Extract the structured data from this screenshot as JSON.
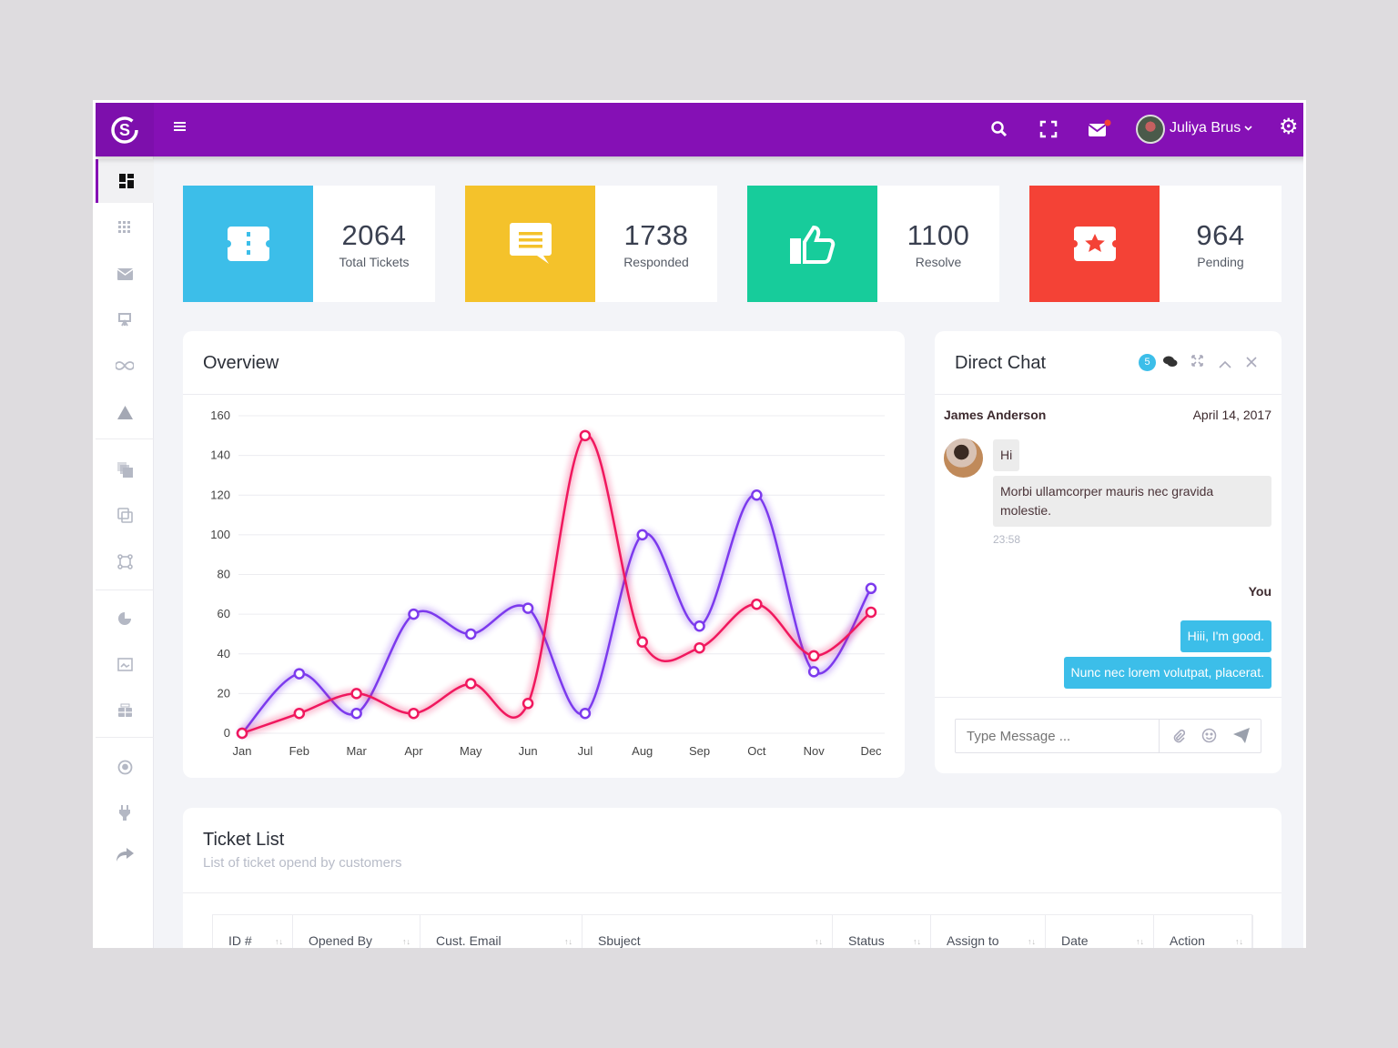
{
  "header": {
    "user_name": "Juliya Brus",
    "icons": [
      "menu-icon",
      "search-icon",
      "fullscreen-icon",
      "mail-icon",
      "avatar",
      "settings-icon"
    ],
    "brand_color": "#8510b5"
  },
  "sidebar": {
    "items": [
      "dashboard-icon",
      "apps-icon",
      "mail-icon",
      "presentation-icon",
      "infinity-icon",
      "warning-icon",
      "layers-icon",
      "copy-icon",
      "vector-icon",
      "pie-chart-icon",
      "image-icon",
      "widgets-icon",
      "map-pin-icon",
      "plug-icon",
      "share-icon"
    ]
  },
  "stats": [
    {
      "value": "2064",
      "label": "Total Tickets",
      "color": "#3cbee9",
      "icon": "ticket-icon"
    },
    {
      "value": "1738",
      "label": "Responded",
      "color": "#f4c22b",
      "icon": "message-icon"
    },
    {
      "value": "1100",
      "label": "Resolve",
      "color": "#17cc9b",
      "icon": "thumbs-up-icon"
    },
    {
      "value": "964",
      "label": "Pending",
      "color": "#f44236",
      "icon": "star-ticket-icon"
    }
  ],
  "overview": {
    "title": "Overview"
  },
  "chart_data": {
    "type": "line",
    "categories": [
      "Jan",
      "Feb",
      "Mar",
      "Apr",
      "May",
      "Jun",
      "Jul",
      "Aug",
      "Sep",
      "Oct",
      "Nov",
      "Dec"
    ],
    "ylim": [
      0,
      160
    ],
    "yticks": [
      0,
      20,
      40,
      60,
      80,
      100,
      120,
      140,
      160
    ],
    "grid": true,
    "series": [
      {
        "color": "#7c3aed",
        "values": [
          0,
          30,
          10,
          60,
          50,
          63,
          10,
          100,
          54,
          120,
          31,
          73
        ]
      },
      {
        "color": "#f0185e",
        "values": [
          0,
          10,
          20,
          10,
          25,
          15,
          150,
          46,
          43,
          65,
          39,
          61
        ]
      }
    ]
  },
  "chat": {
    "title": "Direct Chat",
    "badge": "5",
    "sender": "James Anderson",
    "date": "April 14, 2017",
    "msg1": "Hi",
    "msg2": "Morbi ullamcorper mauris nec gravida molestie.",
    "time": "23:58",
    "me_label": "You",
    "reply1": "Hiii, I'm good.",
    "reply2": "Nunc nec lorem volutpat, placerat.",
    "input_placeholder": "Type Message ..."
  },
  "tickets": {
    "title": "Ticket List",
    "subtitle": "List of ticket opend by customers",
    "columns": [
      "ID #",
      "Opened By",
      "Cust. Email",
      "Sbuject",
      "Status",
      "Assign to",
      "Date",
      "Action"
    ]
  }
}
